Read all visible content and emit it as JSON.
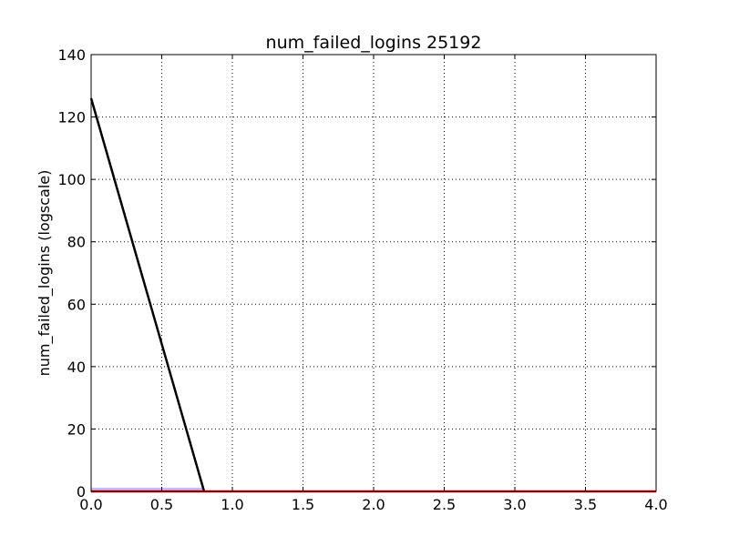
{
  "chart_data": {
    "type": "line",
    "title": "num_failed_logins 25192",
    "xlabel": "",
    "ylabel": "num_failed_logins (logscale)",
    "xlim": [
      0.0,
      4.0
    ],
    "ylim": [
      0,
      140
    ],
    "x_ticks": [
      "0.0",
      "0.5",
      "1.0",
      "1.5",
      "2.0",
      "2.5",
      "3.0",
      "3.5",
      "4.0"
    ],
    "y_ticks": [
      "0",
      "20",
      "40",
      "60",
      "80",
      "100",
      "120",
      "140"
    ],
    "grid": true,
    "series": [
      {
        "color": "#000000",
        "points": [
          [
            0.0,
            126
          ],
          [
            0.8,
            0
          ]
        ]
      },
      {
        "color": "#ff0000",
        "points": [
          [
            0.0,
            0
          ],
          [
            4.0,
            0
          ]
        ]
      }
    ],
    "bars": [
      {
        "x0": 0.0,
        "x1": 0.8,
        "value": 1.2,
        "color": "#bfbfff"
      }
    ]
  }
}
